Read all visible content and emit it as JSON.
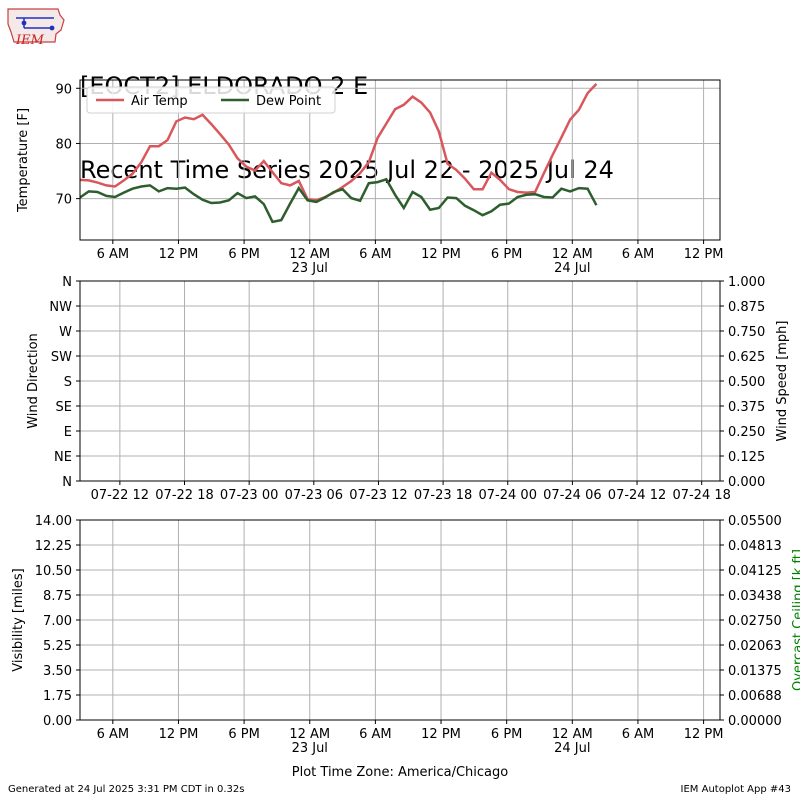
{
  "title": {
    "line1": "[EOCT2] ELDORADO 2 E",
    "line2": "Recent Time Series 2025 Jul 22 - 2025 Jul 24"
  },
  "logo": {
    "text": "IEM",
    "icon": "iem-iowa-logo-icon"
  },
  "footer": {
    "left": "Generated at 24 Jul 2025 3:31 PM CDT in 0.32s",
    "right": "IEM Autoplot App #43"
  },
  "colors": {
    "air_temp": "#d9575c",
    "dew_point": "#2e5e2e",
    "grid": "#b0b0b0",
    "ceiling_label": "#008000"
  },
  "chart_data": [
    {
      "type": "line",
      "ylabel": "Temperature [F]",
      "ylim": [
        62.5,
        91.5
      ],
      "yticks": [
        70,
        80,
        90
      ],
      "xlim_hours": [
        3,
        61.5
      ],
      "xticks": [
        {
          "h": 6,
          "label": "6 AM"
        },
        {
          "h": 12,
          "label": "12 PM"
        },
        {
          "h": 18,
          "label": "6 PM"
        },
        {
          "h": 24,
          "label": "12 AM",
          "sub": "23 Jul"
        },
        {
          "h": 30,
          "label": "6 AM"
        },
        {
          "h": 36,
          "label": "12 PM"
        },
        {
          "h": 42,
          "label": "6 PM"
        },
        {
          "h": 48,
          "label": "12 AM",
          "sub": "24 Jul"
        },
        {
          "h": 54,
          "label": "6 AM"
        },
        {
          "h": 60,
          "label": "12 PM"
        }
      ],
      "x_hours_start": 3,
      "x_hours_step": 0.8,
      "legend_position": "top-left",
      "grid": true,
      "series": [
        {
          "name": "Air Temp",
          "values": [
            73.4,
            73.3,
            72.9,
            72.4,
            72.2,
            73.3,
            74.5,
            76.6,
            79.5,
            79.5,
            80.6,
            84.0,
            84.7,
            84.4,
            85.2,
            83.5,
            81.7,
            79.8,
            77.3,
            75.8,
            75.1,
            76.8,
            74.8,
            72.8,
            72.4,
            73.2,
            69.9,
            69.7,
            70.3,
            71.1,
            72.1,
            73.2,
            74.6,
            76.6,
            81.0,
            83.6,
            86.2,
            87.0,
            88.5,
            87.4,
            85.6,
            82.2,
            76.3,
            75.2,
            73.6,
            71.7,
            71.7,
            74.7,
            73.4,
            71.7,
            71.2,
            71.1,
            71.2,
            74.6,
            77.9,
            81.1,
            84.3,
            86.1,
            89.1,
            90.8
          ],
          "color": "#d9575c"
        },
        {
          "name": "Dew Point",
          "values": [
            70.2,
            71.3,
            71.2,
            70.5,
            70.3,
            71.1,
            71.8,
            72.2,
            72.4,
            71.3,
            71.9,
            71.8,
            72.0,
            70.8,
            69.8,
            69.2,
            69.3,
            69.7,
            71.0,
            70.1,
            70.4,
            69.0,
            65.8,
            66.1,
            69.1,
            71.9,
            69.7,
            69.4,
            70.2,
            71.2,
            71.7,
            70.1,
            69.6,
            72.8,
            73.0,
            73.5,
            70.7,
            68.3,
            71.2,
            70.3,
            68.0,
            68.3,
            70.2,
            70.1,
            68.7,
            67.9,
            67.0,
            67.7,
            68.9,
            69.1,
            70.3,
            70.7,
            70.8,
            70.3,
            70.2,
            71.8,
            71.3,
            71.9,
            71.8,
            68.8
          ],
          "color": "#2e5e2e"
        }
      ]
    },
    {
      "type": "line",
      "ylabel": "Wind Direction",
      "ylabel_right": "Wind Speed [mph]",
      "yticks_left": [
        "N",
        "NE",
        "E",
        "SE",
        "S",
        "SW",
        "W",
        "NW",
        "N"
      ],
      "yticks_right": [
        "0.000",
        "0.125",
        "0.250",
        "0.375",
        "0.500",
        "0.625",
        "0.750",
        "0.875",
        "1.000"
      ],
      "xlim_hours": [
        2.3,
        61.7
      ],
      "xticks": [
        {
          "h": 6,
          "label": "07-22 12"
        },
        {
          "h": 12,
          "label": "07-22 18"
        },
        {
          "h": 18,
          "label": "07-23 00"
        },
        {
          "h": 24,
          "label": "07-23 06"
        },
        {
          "h": 30,
          "label": "07-23 12"
        },
        {
          "h": 36,
          "label": "07-23 18"
        },
        {
          "h": 42,
          "label": "07-24 00"
        },
        {
          "h": 48,
          "label": "07-24 06"
        },
        {
          "h": 54,
          "label": "07-24 12"
        },
        {
          "h": 60,
          "label": "07-24 18"
        }
      ],
      "grid": true,
      "series": []
    },
    {
      "type": "line",
      "ylabel": "Visibility [miles]",
      "ylabel_right": "Overcast Ceiling [k ft]",
      "yticks_left": [
        "0.00",
        "1.75",
        "3.50",
        "5.25",
        "7.00",
        "8.75",
        "10.50",
        "12.25",
        "14.00"
      ],
      "yticks_right": [
        "0.00000",
        "0.00688",
        "0.01375",
        "0.02063",
        "0.02750",
        "0.03438",
        "0.04125",
        "0.04813",
        "0.05500"
      ],
      "xlim_hours": [
        3,
        61.5
      ],
      "xticks": [
        {
          "h": 6,
          "label": "6 AM"
        },
        {
          "h": 12,
          "label": "12 PM"
        },
        {
          "h": 18,
          "label": "6 PM"
        },
        {
          "h": 24,
          "label": "12 AM",
          "sub": "23 Jul"
        },
        {
          "h": 30,
          "label": "6 AM"
        },
        {
          "h": 36,
          "label": "12 PM"
        },
        {
          "h": 42,
          "label": "6 PM"
        },
        {
          "h": 48,
          "label": "12 AM",
          "sub": "24 Jul"
        },
        {
          "h": 54,
          "label": "6 AM"
        },
        {
          "h": 60,
          "label": "12 PM"
        }
      ],
      "xlabel": "Plot Time Zone: America/Chicago",
      "grid": true,
      "series": []
    }
  ]
}
